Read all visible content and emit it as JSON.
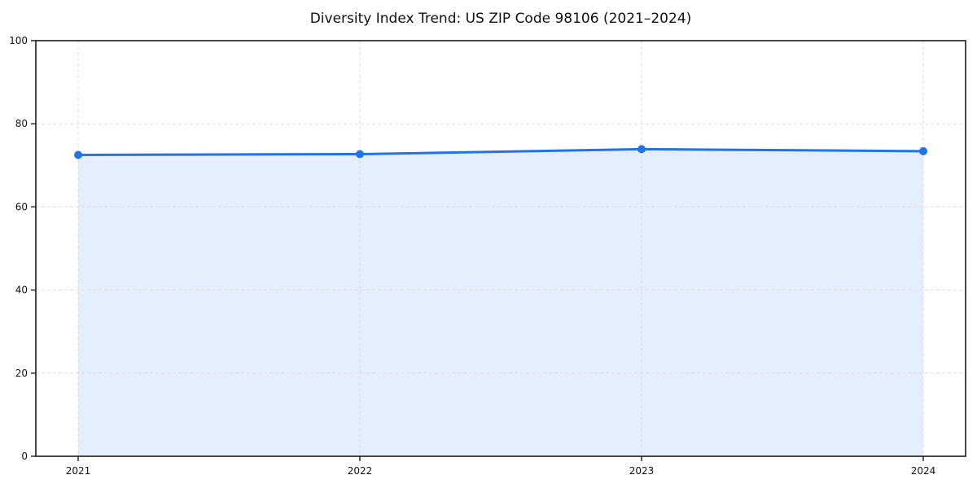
{
  "title": "Diversity Index Trend: US ZIP Code 98106 (2021–2024)",
  "chart_data": {
    "type": "area",
    "title": "Diversity Index Trend: US ZIP Code 98106 (2021–2024)",
    "x": [
      "2021",
      "2022",
      "2023",
      "2024"
    ],
    "series": [
      {
        "name": "Diversity Index",
        "values": [
          72.5,
          72.7,
          73.9,
          73.4
        ]
      }
    ],
    "xlabel": "",
    "ylabel": "",
    "ylim": [
      0,
      100
    ],
    "yticks": [
      0,
      20,
      40,
      60,
      80,
      100
    ],
    "grid": "dashed",
    "legend_position": "none",
    "colors": {
      "line": "#2173e6",
      "marker": "#2173e6",
      "fill": "#2173e6",
      "fill_opacity": 0.12,
      "gridline": "#dcdcdc",
      "spine": "#1a1a1a",
      "tick_label": "#111111",
      "background": "#ffffff"
    }
  }
}
